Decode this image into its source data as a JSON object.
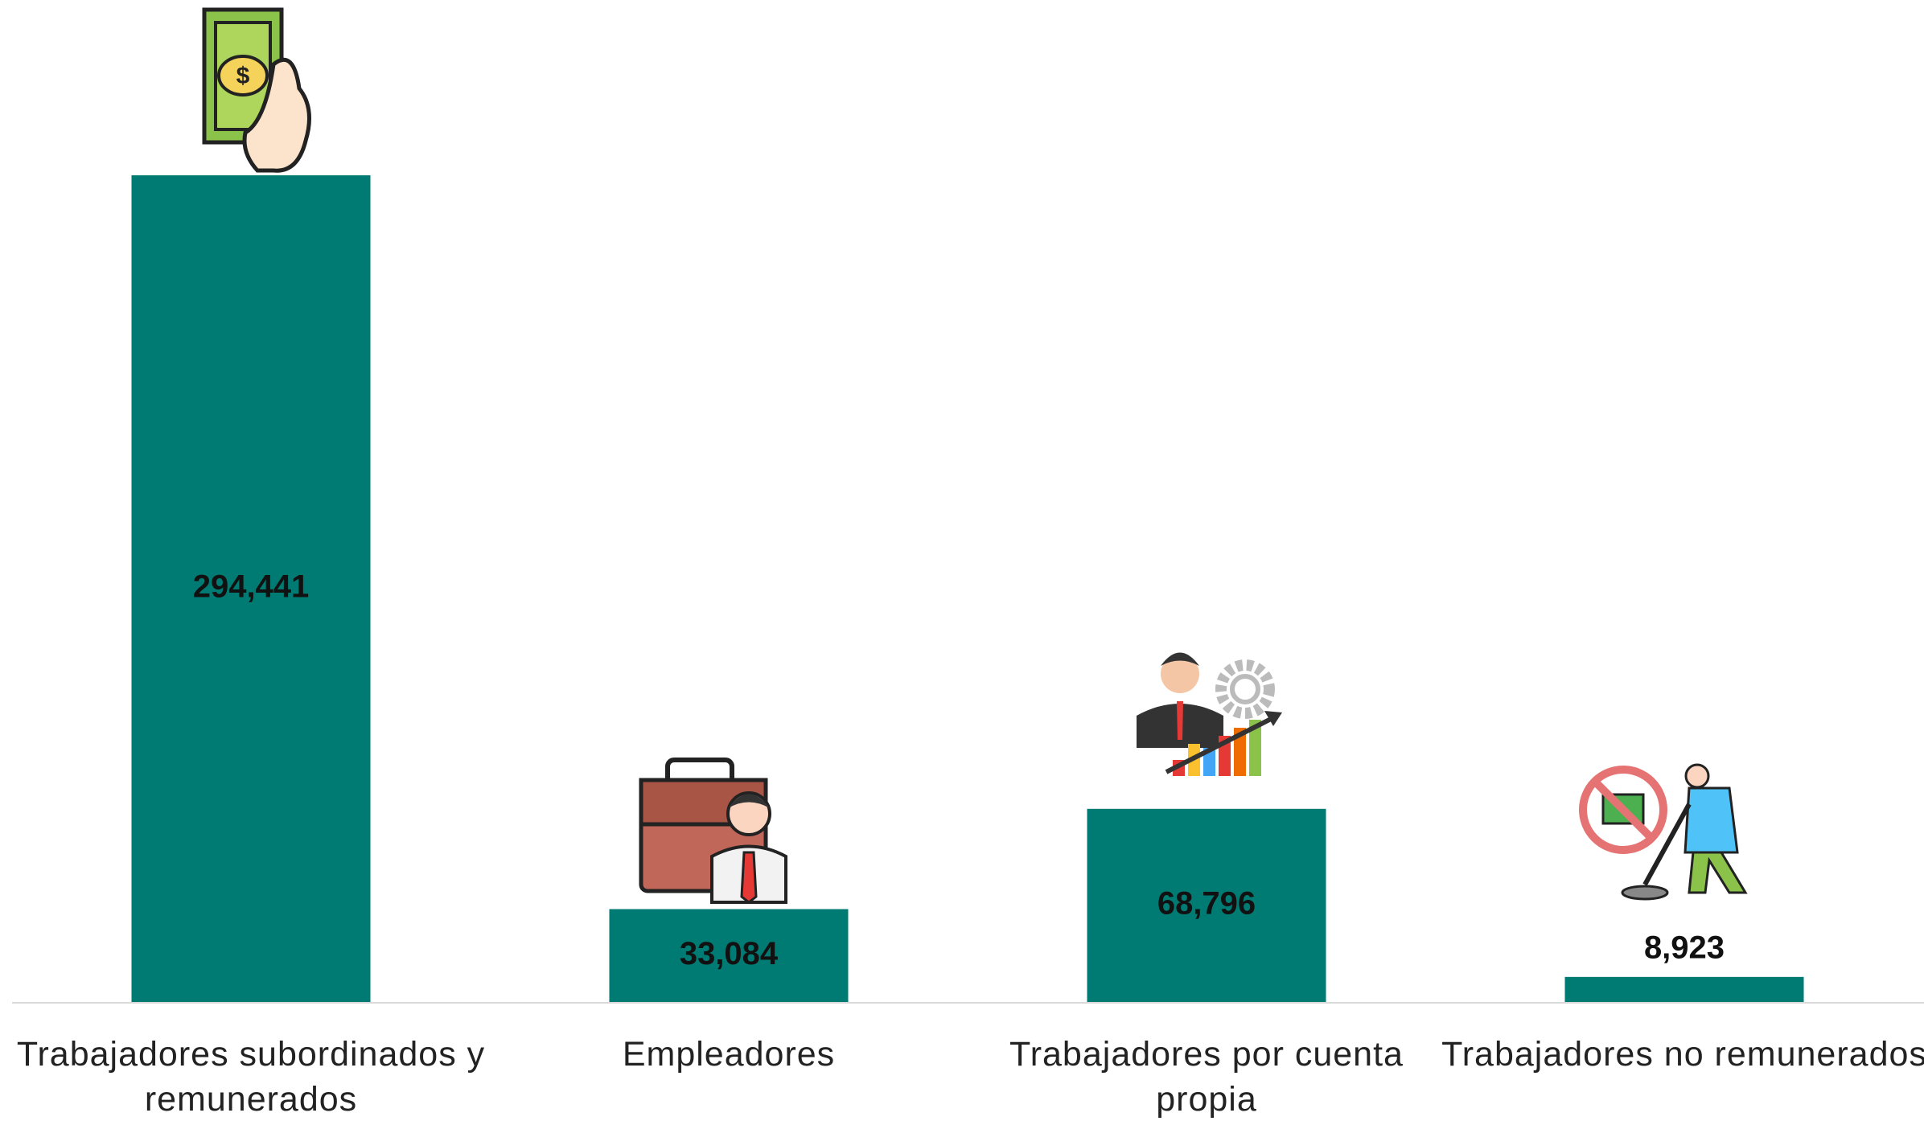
{
  "chart_data": {
    "type": "bar",
    "categories": [
      "Trabajadores subordinados y remunerados",
      "Empleadores",
      "Trabajadores por cuenta propia",
      "Trabajadores no remunerados"
    ],
    "values": [
      294441,
      33084,
      68796,
      8923
    ],
    "value_labels": [
      "294,441",
      "33,084",
      "68,796",
      "8,923"
    ],
    "color": "#007b73"
  }
}
